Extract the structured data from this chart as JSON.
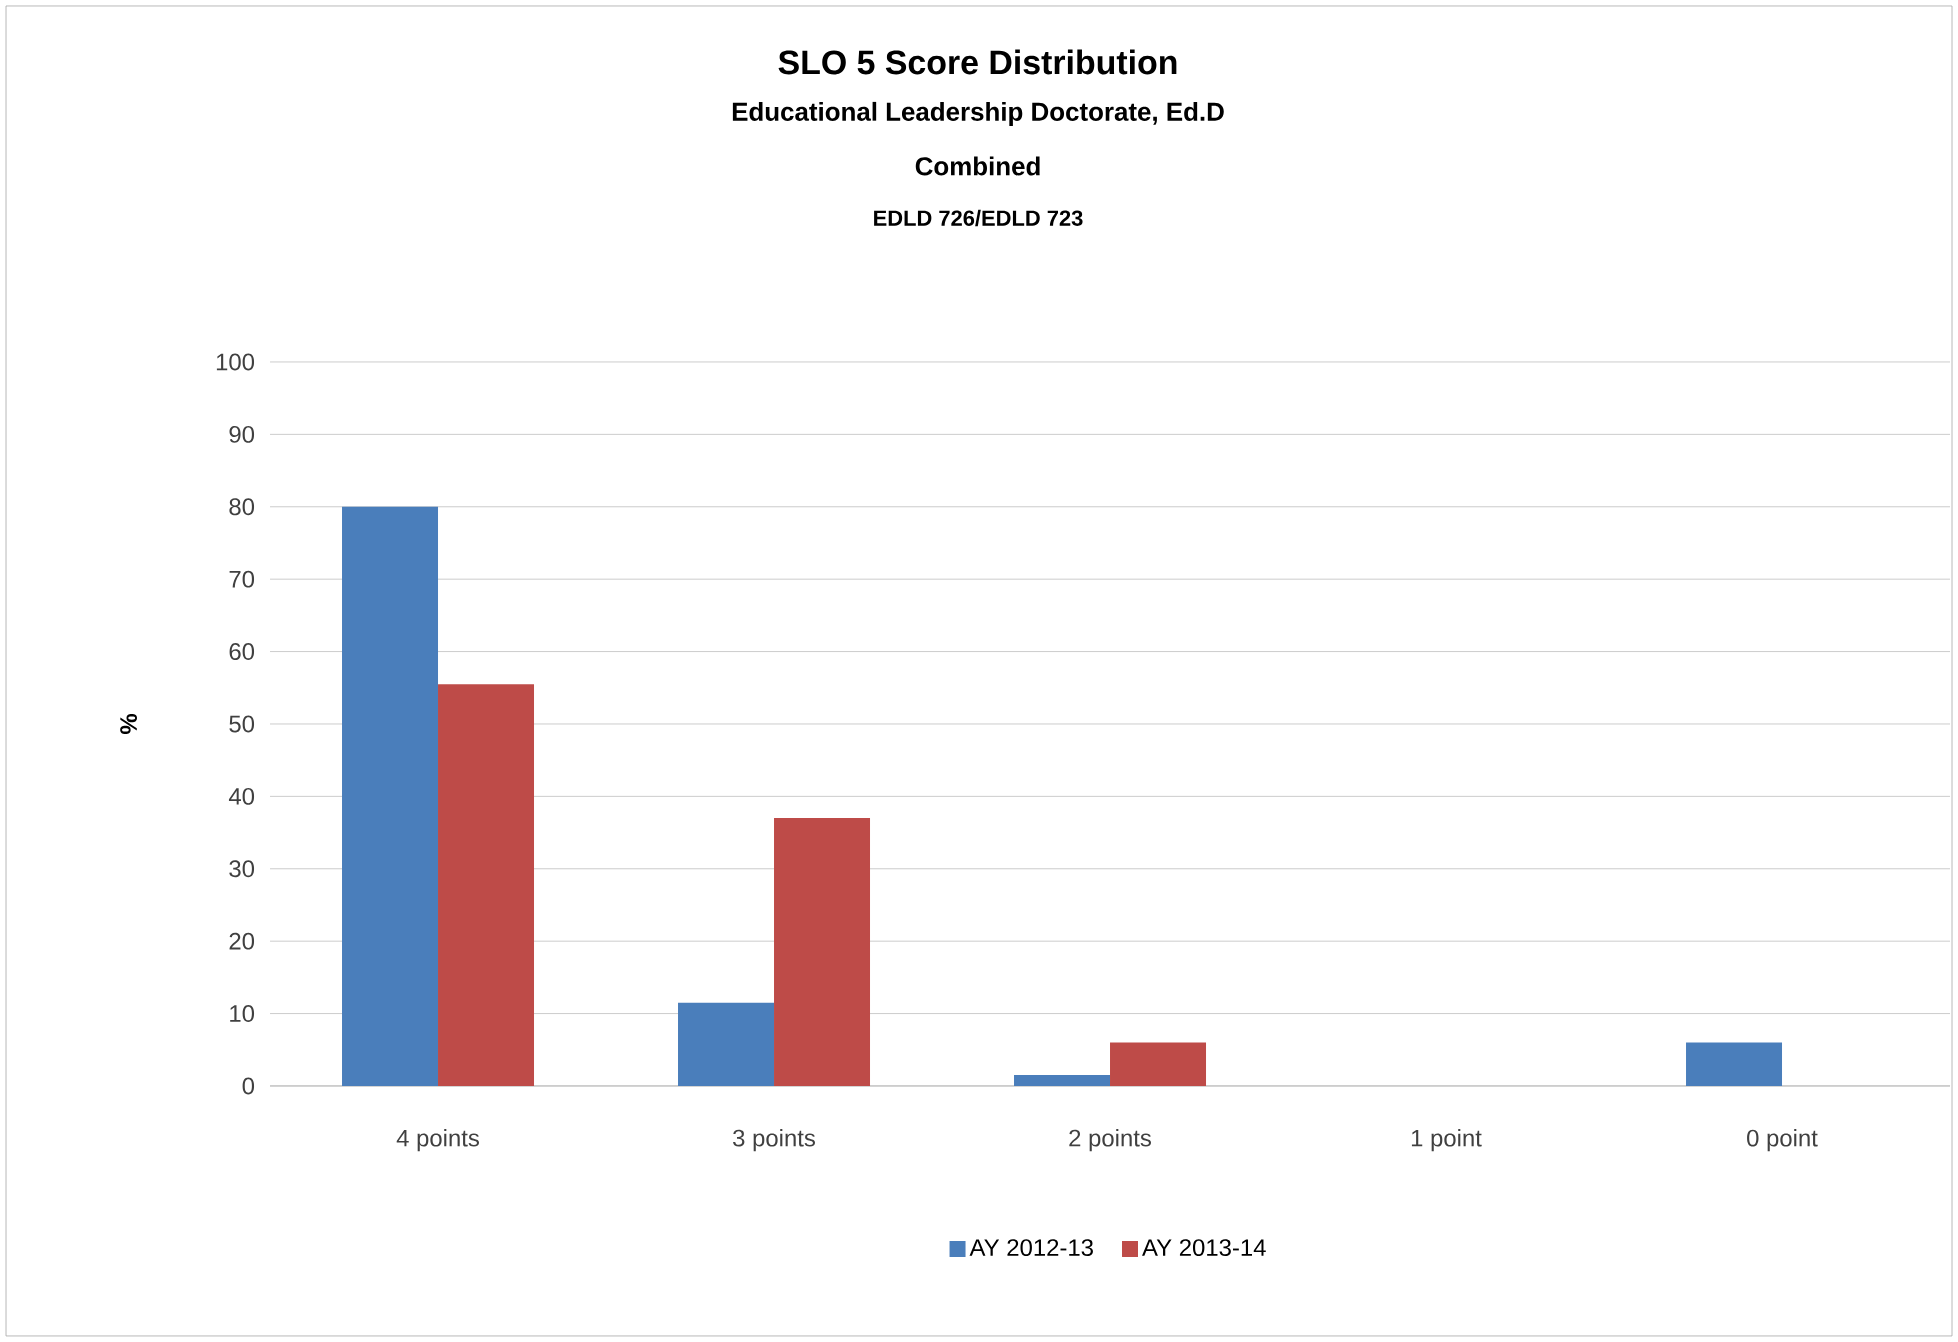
{
  "chart_data": {
    "type": "bar",
    "title": "SLO 5 Score Distribution",
    "subtitle": "Educational Leadership Doctorate, Ed.D",
    "annotations": [
      "Combined",
      "EDLD 726/EDLD 723"
    ],
    "ylabel": "%",
    "categories": [
      "4 points",
      "3 points",
      "2 points",
      "1 point",
      "0 point"
    ],
    "series": [
      {
        "name": "AY 2012-13",
        "color": "#4a7ebb",
        "values": [
          80,
          11.5,
          1.5,
          0,
          6
        ]
      },
      {
        "name": "AY 2013-14",
        "color": "#be4b48",
        "values": [
          55.5,
          37,
          6,
          0,
          0
        ]
      }
    ],
    "ylim": [
      0,
      100
    ],
    "yticks": [
      0,
      10,
      20,
      30,
      40,
      50,
      60,
      70,
      80,
      90,
      100
    ],
    "grid": "y",
    "legend": "bottom"
  }
}
